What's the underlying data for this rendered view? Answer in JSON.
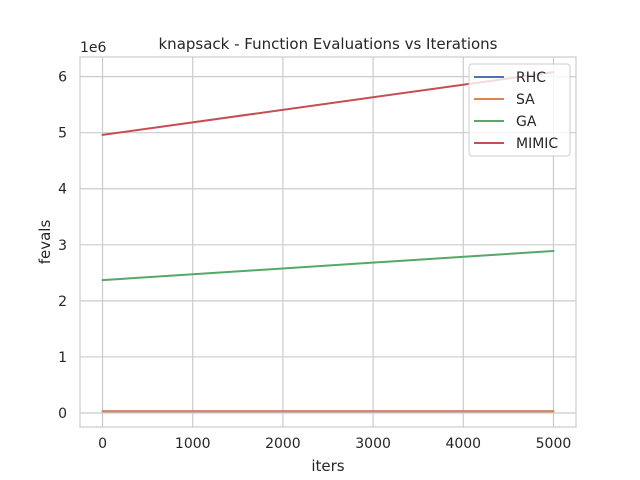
{
  "chart_data": {
    "type": "line",
    "title": "knapsack - Function Evaluations vs Iterations",
    "xlabel": "iters",
    "ylabel": "fevals",
    "y_scale_label": "1e6",
    "xlim": [
      -250,
      5250
    ],
    "ylim": [
      -0.25,
      6.35
    ],
    "x_ticks": [
      0,
      1000,
      2000,
      3000,
      4000,
      5000
    ],
    "y_ticks": [
      0,
      1,
      2,
      3,
      4,
      5,
      6
    ],
    "grid": true,
    "legend_position": "top-right",
    "x": [
      0,
      5000
    ],
    "series": [
      {
        "name": "RHC",
        "color": "#4c72b0",
        "values": [
          0.03,
          0.03
        ]
      },
      {
        "name": "SA",
        "color": "#dd8452",
        "values": [
          0.03,
          0.03
        ]
      },
      {
        "name": "GA",
        "color": "#55a868",
        "values": [
          2.37,
          2.89
        ]
      },
      {
        "name": "MIMIC",
        "color": "#c44e52",
        "values": [
          4.96,
          6.08
        ]
      }
    ]
  }
}
